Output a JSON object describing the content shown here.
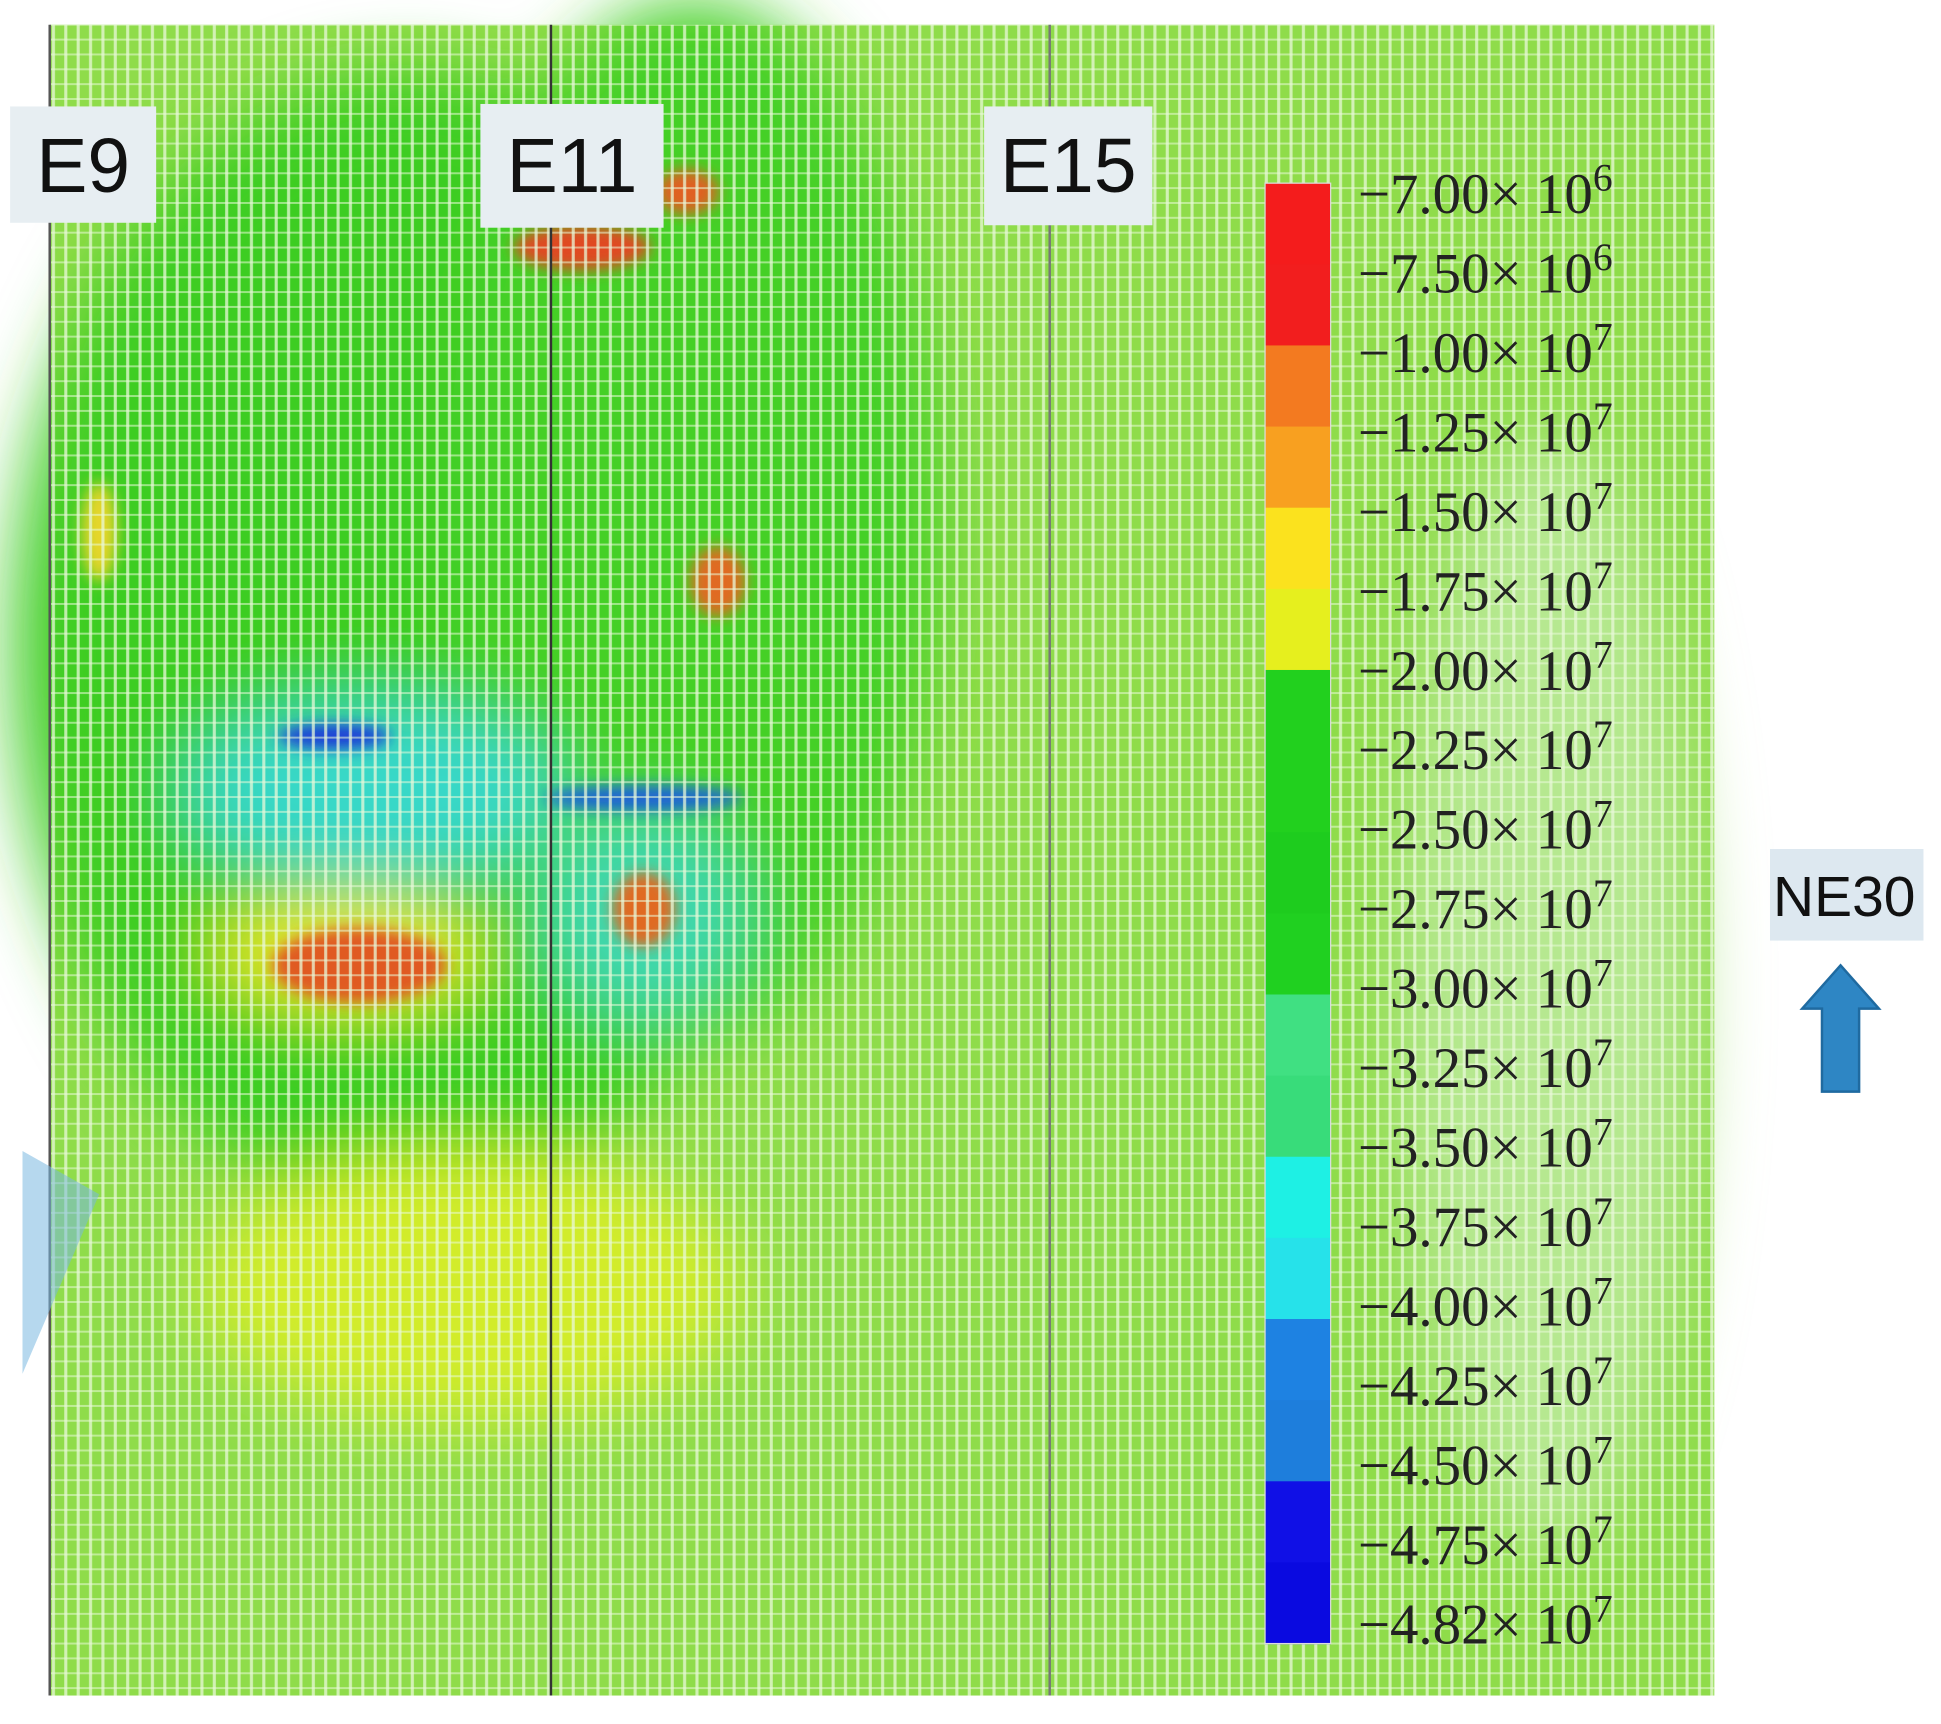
{
  "section_labels": [
    "E9",
    "E11",
    "E15"
  ],
  "direction_label": "NE30",
  "legend": {
    "entries": [
      {
        "mantissa": "−7.00× 10",
        "exponent": "6"
      },
      {
        "mantissa": "−7.50× 10",
        "exponent": "6"
      },
      {
        "mantissa": "−1.00× 10",
        "exponent": "7"
      },
      {
        "mantissa": "−1.25× 10",
        "exponent": "7"
      },
      {
        "mantissa": "−1.50× 10",
        "exponent": "7"
      },
      {
        "mantissa": "−1.75× 10",
        "exponent": "7"
      },
      {
        "mantissa": "−2.00× 10",
        "exponent": "7"
      },
      {
        "mantissa": "−2.25× 10",
        "exponent": "7"
      },
      {
        "mantissa": "−2.50× 10",
        "exponent": "7"
      },
      {
        "mantissa": "−2.75× 10",
        "exponent": "7"
      },
      {
        "mantissa": "−3.00× 10",
        "exponent": "7"
      },
      {
        "mantissa": "−3.25× 10",
        "exponent": "7"
      },
      {
        "mantissa": "−3.50× 10",
        "exponent": "7"
      },
      {
        "mantissa": "−3.75× 10",
        "exponent": "7"
      },
      {
        "mantissa": "−4.00× 10",
        "exponent": "7"
      },
      {
        "mantissa": "−4.25× 10",
        "exponent": "7"
      },
      {
        "mantissa": "−4.50× 10",
        "exponent": "7"
      },
      {
        "mantissa": "−4.75× 10",
        "exponent": "7"
      },
      {
        "mantissa": "−4.82× 10",
        "exponent": "7"
      }
    ],
    "colors": [
      "#f41c1c",
      "#f21e1e",
      "#f37a20",
      "#f8a020",
      "#fbe21e",
      "#e6ef1e",
      "#22d01e",
      "#22d01e",
      "#1ecc1e",
      "#20d020",
      "#40e082",
      "#38dc7a",
      "#1ef0e4",
      "#26e2ea",
      "#1e82e2",
      "#1e7edc",
      "#1010e6",
      "#0a0ae0"
    ]
  }
}
